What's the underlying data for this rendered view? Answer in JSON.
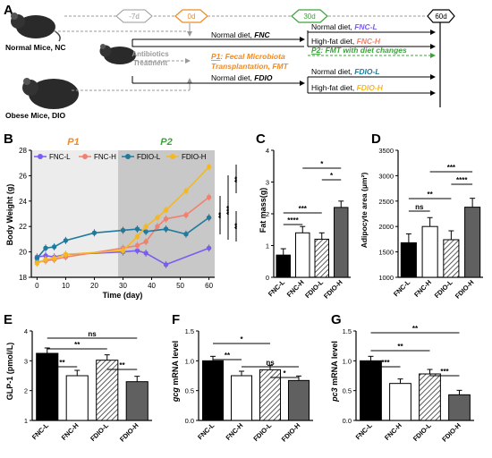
{
  "panelA": {
    "label": "A",
    "mouse_nc": "Normal Mice, NC",
    "mouse_dio": "Obese Mice, DIO",
    "days": [
      "-7d",
      "0d",
      "30d",
      "60d"
    ],
    "antibiotics": [
      "Antibiotics",
      "Treatment"
    ],
    "diet_fnc": "Normal diet, ",
    "diet_fnc_em": "FNC",
    "diet_fdio": "Normal diet, ",
    "diet_fdio_em": "FDIO",
    "p1_line1_tag": "P1",
    "p1_line1_rest": ": Fecal Microbiota",
    "p1_line2": "Transplantation, FMT",
    "p2_tag": "P2",
    "p2_rest": ": FMT with diet changes",
    "out1_pre": "Normal diet, ",
    "out1_em": "FNC-L",
    "out2_pre": "High-fat diet, ",
    "out2_em": "FNC-H",
    "out3_pre": "Normal diet, ",
    "out3_em": "FDIO-L",
    "out4_pre": "High-fat diet, ",
    "out4_em": "FDIO-H",
    "colors": {
      "fncl": "#7b5cf0",
      "fnch": "#f2806e",
      "fdiol": "#1f7a9e",
      "fdioh": "#f5b820",
      "p1": "#f08a24",
      "p2": "#3aa33a",
      "gray": "#999999"
    }
  },
  "panelB": {
    "label": "B",
    "p1": "P1",
    "p2": "P2",
    "ylabel": "Body Weight (g)",
    "xlabel": "Time (day)",
    "yticks": [
      "18",
      "20",
      "22",
      "24",
      "26",
      "28"
    ],
    "xticks": [
      "0",
      "10",
      "20",
      "30",
      "40",
      "50",
      "60"
    ],
    "legend": [
      "FNC-L",
      "FNC-H",
      "FDIO-L",
      "FDIO-H"
    ],
    "sig": [
      "**",
      "***",
      "**",
      "**"
    ]
  },
  "panelC": {
    "label": "C",
    "ylabel": "Fat mass(g)",
    "yticks": [
      "0",
      "1",
      "2",
      "3",
      "4"
    ],
    "cats": [
      "FNC-L",
      "FNC-H",
      "FDIO-L",
      "FDIO-H"
    ],
    "sig": [
      "*",
      "*",
      "***",
      "****"
    ]
  },
  "panelD": {
    "label": "D",
    "ylabel": "Adipocyte area (μm²)",
    "yticks": [
      "1000",
      "1500",
      "2000",
      "2500",
      "3000",
      "3500"
    ],
    "cats": [
      "FNC-L",
      "FNC-H",
      "FDIO-L",
      "FDIO-H"
    ],
    "sig": [
      "***",
      "****",
      "**",
      "ns"
    ]
  },
  "panelE": {
    "label": "E",
    "ylabel": "GLP-1 (pmol/L)",
    "yticks": [
      "1",
      "2",
      "3",
      "4"
    ],
    "cats": [
      "FNC-L",
      "FNC-H",
      "FDIO-L",
      "FDIO-H"
    ],
    "sig": [
      "ns",
      "**",
      "**",
      "**"
    ]
  },
  "panelF": {
    "label": "F",
    "ylabel_em": "gcg",
    "ylabel_rest": " mRNA level",
    "yticks": [
      "0.0",
      "0.5",
      "1.0",
      "1.5"
    ],
    "cats": [
      "FNC-L",
      "FNC-H",
      "FDIO-L",
      "FDIO-H"
    ],
    "sig": [
      "*",
      "**",
      "ns",
      "*"
    ]
  },
  "panelG": {
    "label": "G",
    "ylabel_em": "pc3",
    "ylabel_rest": " mRNA level",
    "yticks": [
      "0.0",
      "0.5",
      "1.0",
      "1.5"
    ],
    "cats": [
      "FNC-L",
      "FNC-H",
      "FDIO-L",
      "FDIO-H"
    ],
    "sig": [
      "**",
      "**",
      "***",
      "***"
    ]
  },
  "chart_data": [
    {
      "type": "line",
      "xlabel": "Time (day)",
      "ylabel": "Body Weight (g)",
      "xlim": [
        -2,
        62
      ],
      "ylim": [
        18,
        28
      ],
      "series": [
        {
          "name": "FNC-L",
          "x": [
            0,
            3,
            6,
            10,
            30,
            35,
            38,
            45,
            60
          ],
          "y": [
            19.6,
            19.7,
            19.6,
            19.8,
            20.0,
            20.1,
            19.9,
            19.0,
            20.3
          ]
        },
        {
          "name": "FNC-H",
          "x": [
            0,
            3,
            6,
            10,
            30,
            35,
            38,
            42,
            45,
            52,
            60
          ],
          "y": [
            19.2,
            19.3,
            19.4,
            19.6,
            20.3,
            20.5,
            20.8,
            22.0,
            22.6,
            22.9,
            24.3
          ]
        },
        {
          "name": "FDIO-L",
          "x": [
            0,
            3,
            6,
            10,
            20,
            30,
            35,
            38,
            45,
            52,
            60
          ],
          "y": [
            19.5,
            20.3,
            20.4,
            20.9,
            21.5,
            21.7,
            21.8,
            21.6,
            21.8,
            21.4,
            22.7
          ]
        },
        {
          "name": "FDIO-H",
          "x": [
            0,
            3,
            6,
            10,
            30,
            35,
            38,
            42,
            45,
            52,
            60
          ],
          "y": [
            19.1,
            19.4,
            19.5,
            19.8,
            20.1,
            21.2,
            22.0,
            22.7,
            23.3,
            24.8,
            26.7
          ]
        }
      ]
    },
    {
      "type": "bar",
      "categories": [
        "FNC-L",
        "FNC-H",
        "FDIO-L",
        "FDIO-H"
      ],
      "values": [
        0.7,
        1.4,
        1.2,
        2.2
      ],
      "ylabel": "Fat mass(g)",
      "ylim": [
        0,
        4
      ]
    },
    {
      "type": "bar",
      "categories": [
        "FNC-L",
        "FNC-H",
        "FDIO-L",
        "FDIO-H"
      ],
      "values": [
        1680,
        2000,
        1740,
        2380
      ],
      "ylabel": "Adipocyte area (μm²)",
      "ylim": [
        1000,
        3500
      ]
    },
    {
      "type": "bar",
      "categories": [
        "FNC-L",
        "FNC-H",
        "FDIO-L",
        "FDIO-H"
      ],
      "values": [
        3.25,
        2.5,
        3.02,
        2.3
      ],
      "ylabel": "GLP-1 (pmol/L)",
      "ylim": [
        1,
        4
      ]
    },
    {
      "type": "bar",
      "categories": [
        "FNC-L",
        "FNC-H",
        "FDIO-L",
        "FDIO-H"
      ],
      "values": [
        1.0,
        0.75,
        0.85,
        0.67
      ],
      "ylabel": "gcg mRNA level",
      "ylim": [
        0,
        1.5
      ]
    },
    {
      "type": "bar",
      "categories": [
        "FNC-L",
        "FNC-H",
        "FDIO-L",
        "FDIO-H"
      ],
      "values": [
        1.0,
        0.62,
        0.78,
        0.43
      ],
      "ylabel": "pc3 mRNA level",
      "ylim": [
        0,
        1.5
      ]
    }
  ]
}
